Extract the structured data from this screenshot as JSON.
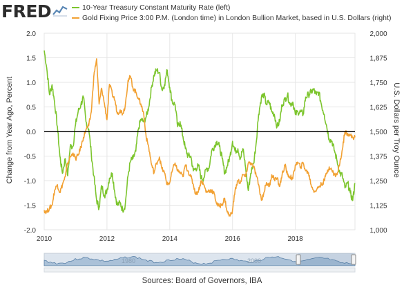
{
  "header": {
    "logo_text": "FRED",
    "logo_icon": "fred-line-chart-icon"
  },
  "legend": [
    {
      "label": "10-Year Treasury Constant Maturity Rate (left)",
      "color": "#7cc52d"
    },
    {
      "label": "Gold Fixing Price 3:00 P.M. (London time) in London Bullion Market, based in U.S. Dollars (right)",
      "color": "#f2a133"
    }
  ],
  "source_text": "Sources: Board of Governors, IBA",
  "navigator": {
    "labels": [
      "1980",
      "2000"
    ]
  },
  "chart_data": {
    "type": "line",
    "xlim": [
      2010.0,
      2019.9
    ],
    "x_ticks": [
      "2010",
      "2012",
      "2014",
      "2016",
      "2018"
    ],
    "y_left": {
      "label": "Change from Year Ago, Percent",
      "lim": [
        -2.0,
        2.0
      ],
      "ticks": [
        "2.0",
        "1.5",
        "1.0",
        "0.5",
        "0.0",
        "-0.5",
        "-1.0",
        "-1.5",
        "-2.0"
      ]
    },
    "y_right": {
      "label": "U.S. Dollars per Troy Ounce",
      "lim": [
        1000,
        2000
      ],
      "ticks": [
        "2,000",
        "1,875",
        "1,750",
        "1,625",
        "1,500",
        "1,375",
        "1,250",
        "1,125",
        "1,000"
      ]
    },
    "grid": true,
    "zero_line": true,
    "series": [
      {
        "name": "10-Year Treasury Constant Maturity Rate (left)",
        "axis": "left",
        "color": "#7cc52d",
        "x": [
          2010.0,
          2010.08,
          2010.17,
          2010.25,
          2010.33,
          2010.42,
          2010.5,
          2010.58,
          2010.67,
          2010.75,
          2010.83,
          2010.92,
          2011.0,
          2011.08,
          2011.17,
          2011.25,
          2011.33,
          2011.42,
          2011.5,
          2011.58,
          2011.67,
          2011.75,
          2011.83,
          2011.92,
          2012.0,
          2012.08,
          2012.17,
          2012.25,
          2012.33,
          2012.42,
          2012.5,
          2012.58,
          2012.67,
          2012.75,
          2012.83,
          2012.92,
          2013.0,
          2013.08,
          2013.17,
          2013.25,
          2013.33,
          2013.42,
          2013.5,
          2013.58,
          2013.67,
          2013.75,
          2013.83,
          2013.92,
          2014.0,
          2014.08,
          2014.17,
          2014.25,
          2014.33,
          2014.42,
          2014.5,
          2014.58,
          2014.67,
          2014.75,
          2014.83,
          2014.92,
          2015.0,
          2015.08,
          2015.17,
          2015.25,
          2015.33,
          2015.42,
          2015.5,
          2015.58,
          2015.67,
          2015.75,
          2015.83,
          2015.92,
          2016.0,
          2016.08,
          2016.17,
          2016.25,
          2016.33,
          2016.42,
          2016.5,
          2016.58,
          2016.67,
          2016.75,
          2016.83,
          2016.92,
          2017.0,
          2017.08,
          2017.17,
          2017.25,
          2017.33,
          2017.42,
          2017.5,
          2017.58,
          2017.67,
          2017.75,
          2017.83,
          2017.92,
          2018.0,
          2018.08,
          2018.17,
          2018.25,
          2018.33,
          2018.42,
          2018.5,
          2018.58,
          2018.67,
          2018.75,
          2018.83,
          2018.92,
          2019.0,
          2019.08,
          2019.17,
          2019.25,
          2019.33,
          2019.42,
          2019.5,
          2019.58,
          2019.67,
          2019.75,
          2019.83,
          2019.9
        ],
        "values": [
          1.65,
          1.3,
          0.75,
          0.95,
          0.6,
          0.1,
          -0.5,
          -0.85,
          -0.55,
          -0.9,
          -0.3,
          -0.3,
          0.15,
          0.4,
          0.55,
          0.7,
          0.2,
          0.05,
          -0.45,
          -0.9,
          -1.4,
          -1.55,
          -1.1,
          -1.3,
          -1.2,
          -0.95,
          -0.85,
          -1.25,
          -1.5,
          -1.45,
          -1.6,
          -1.5,
          -0.9,
          -0.6,
          -0.55,
          -0.4,
          0.05,
          0.25,
          0.2,
          0.3,
          0.5,
          0.9,
          1.15,
          1.25,
          1.2,
          0.85,
          0.95,
          1.25,
          0.9,
          0.6,
          0.55,
          0.1,
          0.2,
          -0.1,
          -0.35,
          -0.5,
          -0.5,
          -0.8,
          -0.75,
          -0.7,
          -0.95,
          -0.95,
          -0.75,
          -0.75,
          -0.4,
          -0.3,
          -0.2,
          -0.3,
          -0.55,
          -0.85,
          -0.7,
          -0.5,
          -0.2,
          -0.4,
          -0.35,
          -0.55,
          -0.35,
          -0.75,
          -1.2,
          -0.85,
          -0.65,
          -0.25,
          0.35,
          0.7,
          0.75,
          0.55,
          0.6,
          0.4,
          0.35,
          0.1,
          0.2,
          0.55,
          0.65,
          0.75,
          0.55,
          0.6,
          0.35,
          0.4,
          0.4,
          0.35,
          0.7,
          0.75,
          0.8,
          0.85,
          0.75,
          0.8,
          0.55,
          0.35,
          0.1,
          -0.15,
          -0.2,
          -0.4,
          -0.6,
          -0.85,
          -0.9,
          -1.15,
          -1.05,
          -1.25,
          -1.4,
          -1.05
        ]
      },
      {
        "name": "Gold Fixing Price 3:00 P.M. (London time) in London Bullion Market, based in U.S. Dollars (right)",
        "axis": "right",
        "color": "#f2a133",
        "x": [
          2010.0,
          2010.08,
          2010.17,
          2010.25,
          2010.33,
          2010.42,
          2010.5,
          2010.58,
          2010.67,
          2010.75,
          2010.83,
          2010.92,
          2011.0,
          2011.08,
          2011.17,
          2011.25,
          2011.33,
          2011.42,
          2011.5,
          2011.58,
          2011.67,
          2011.75,
          2011.83,
          2011.92,
          2012.0,
          2012.08,
          2012.17,
          2012.25,
          2012.33,
          2012.42,
          2012.5,
          2012.58,
          2012.67,
          2012.75,
          2012.83,
          2012.92,
          2013.0,
          2013.08,
          2013.17,
          2013.25,
          2013.33,
          2013.42,
          2013.5,
          2013.58,
          2013.67,
          2013.75,
          2013.83,
          2013.92,
          2014.0,
          2014.08,
          2014.17,
          2014.25,
          2014.33,
          2014.42,
          2014.5,
          2014.58,
          2014.67,
          2014.75,
          2014.83,
          2014.92,
          2015.0,
          2015.08,
          2015.17,
          2015.25,
          2015.33,
          2015.42,
          2015.5,
          2015.58,
          2015.67,
          2015.75,
          2015.83,
          2015.92,
          2016.0,
          2016.08,
          2016.17,
          2016.25,
          2016.33,
          2016.42,
          2016.5,
          2016.58,
          2016.67,
          2016.75,
          2016.83,
          2016.92,
          2017.0,
          2017.08,
          2017.17,
          2017.25,
          2017.33,
          2017.42,
          2017.5,
          2017.58,
          2017.67,
          2017.75,
          2017.83,
          2017.92,
          2018.0,
          2018.08,
          2018.17,
          2018.25,
          2018.33,
          2018.42,
          2018.5,
          2018.58,
          2018.67,
          2018.75,
          2018.83,
          2018.92,
          2019.0,
          2019.08,
          2019.17,
          2019.25,
          2019.33,
          2019.42,
          2019.5,
          2019.58,
          2019.67,
          2019.75,
          2019.83,
          2019.9
        ],
        "values": [
          1100,
          1090,
          1110,
          1125,
          1200,
          1230,
          1190,
          1230,
          1270,
          1340,
          1370,
          1390,
          1360,
          1380,
          1420,
          1470,
          1510,
          1530,
          1600,
          1780,
          1870,
          1640,
          1720,
          1640,
          1560,
          1740,
          1690,
          1660,
          1590,
          1610,
          1590,
          1630,
          1760,
          1780,
          1720,
          1700,
          1670,
          1640,
          1590,
          1470,
          1420,
          1330,
          1290,
          1340,
          1370,
          1310,
          1290,
          1230,
          1240,
          1300,
          1340,
          1300,
          1290,
          1270,
          1330,
          1300,
          1270,
          1230,
          1180,
          1200,
          1250,
          1230,
          1190,
          1200,
          1200,
          1180,
          1130,
          1120,
          1130,
          1160,
          1090,
          1070,
          1100,
          1200,
          1250,
          1240,
          1280,
          1270,
          1340,
          1340,
          1320,
          1280,
          1230,
          1150,
          1190,
          1240,
          1220,
          1280,
          1260,
          1260,
          1220,
          1280,
          1330,
          1280,
          1270,
          1260,
          1330,
          1340,
          1320,
          1340,
          1300,
          1290,
          1230,
          1200,
          1200,
          1220,
          1230,
          1250,
          1290,
          1320,
          1300,
          1280,
          1280,
          1340,
          1410,
          1500,
          1490,
          1480,
          1470,
          1470
        ]
      }
    ]
  }
}
